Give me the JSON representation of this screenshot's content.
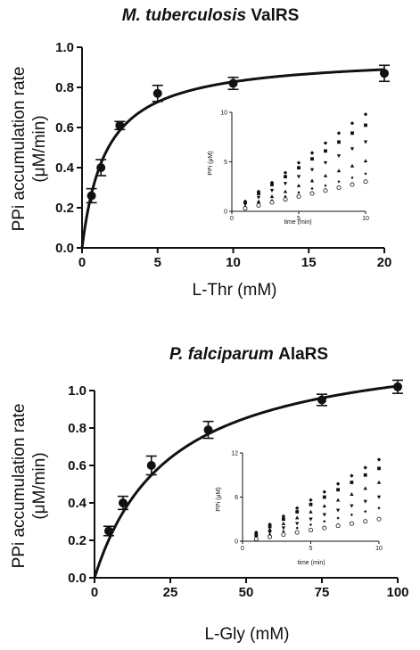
{
  "chart_data": [
    {
      "type": "scatter",
      "title": {
        "species": "M. tuberculosis",
        "enzyme": "ValRS"
      },
      "xlabel": "L-Thr (mM)",
      "ylabel": [
        "PPi accumulation rate",
        "(μM/min)"
      ],
      "xlim": [
        0,
        20
      ],
      "ylim": [
        0,
        1.0
      ],
      "xticks": [
        0,
        5,
        10,
        15,
        20
      ],
      "xtick_labels": [
        "0",
        "5",
        "10",
        "15",
        "20"
      ],
      "yticks": [
        0,
        0.2,
        0.4,
        0.6,
        0.8,
        1.0
      ],
      "ytick_labels": [
        "0.0",
        "0.2",
        "0.4",
        "0.6",
        "0.8",
        "1.0"
      ],
      "points": [
        {
          "x": 0.625,
          "y": 0.26,
          "err": 0.035
        },
        {
          "x": 1.25,
          "y": 0.4,
          "err": 0.04
        },
        {
          "x": 2.5,
          "y": 0.61,
          "err": 0.02
        },
        {
          "x": 5,
          "y": 0.77,
          "err": 0.04
        },
        {
          "x": 10,
          "y": 0.82,
          "err": 0.03
        },
        {
          "x": 20,
          "y": 0.87,
          "err": 0.04
        }
      ],
      "fit": {
        "model": "michaelis-menten",
        "vmax": 0.96,
        "km": 1.6
      },
      "inset": {
        "type": "scatter",
        "xlabel": "time (min)",
        "ylabel": "PPi (μM)",
        "xlim": [
          0,
          10
        ],
        "ylim": [
          0,
          10
        ],
        "xticks": [
          0,
          5,
          10
        ],
        "xtick_labels": [
          "0",
          "5",
          "10"
        ],
        "yticks": [
          0,
          5,
          10
        ],
        "ytick_labels": [
          "0",
          "5",
          "10"
        ],
        "x": [
          1,
          2,
          3,
          4,
          5,
          6,
          7,
          8,
          9,
          10
        ],
        "series": [
          {
            "marker": "diamond",
            "values": [
              1.0,
              2.0,
              2.9,
              3.9,
              4.9,
              5.9,
              6.9,
              7.9,
              8.9,
              9.8
            ]
          },
          {
            "marker": "square",
            "values": [
              0.9,
              1.8,
              2.7,
              3.5,
              4.4,
              5.3,
              6.1,
              7.0,
              7.9,
              8.7
            ]
          },
          {
            "marker": "triangle-down",
            "values": [
              0.7,
              1.4,
              2.1,
              2.8,
              3.5,
              4.2,
              4.9,
              5.6,
              6.3,
              7.0
            ]
          },
          {
            "marker": "triangle-up",
            "values": [
              0.5,
              1.0,
              1.5,
              2.0,
              2.6,
              3.1,
              3.6,
              4.1,
              4.6,
              5.1
            ]
          },
          {
            "marker": "diamond-small",
            "values": [
              0.4,
              0.8,
              1.1,
              1.5,
              1.9,
              2.3,
              2.6,
              3.0,
              3.4,
              3.8
            ]
          },
          {
            "marker": "circle-open",
            "values": [
              0.3,
              0.6,
              0.9,
              1.2,
              1.5,
              1.8,
              2.1,
              2.4,
              2.7,
              3.0
            ]
          }
        ]
      }
    },
    {
      "type": "scatter",
      "title": {
        "species": "P. falciparum",
        "enzyme": "AlaRS"
      },
      "xlabel": "L-Gly (mM)",
      "ylabel": [
        "PPi accumulation rate",
        "(μM/min)"
      ],
      "xlim": [
        0,
        100
      ],
      "ylim": [
        0,
        1.0
      ],
      "xticks": [
        0,
        25,
        50,
        75,
        100
      ],
      "xtick_labels": [
        "0",
        "25",
        "50",
        "75",
        "100"
      ],
      "yticks": [
        0,
        0.2,
        0.4,
        0.6,
        0.8,
        1.0
      ],
      "ytick_labels": [
        "0.0",
        "0.2",
        "0.4",
        "0.6",
        "0.8",
        "1.0"
      ],
      "points": [
        {
          "x": 4.7,
          "y": 0.25,
          "err": 0.025
        },
        {
          "x": 9.4,
          "y": 0.4,
          "err": 0.035
        },
        {
          "x": 18.75,
          "y": 0.6,
          "err": 0.05
        },
        {
          "x": 37.5,
          "y": 0.79,
          "err": 0.045
        },
        {
          "x": 75,
          "y": 0.95,
          "err": 0.03
        },
        {
          "x": 100,
          "y": 1.02,
          "err": 0.035
        }
      ],
      "fit": {
        "model": "michaelis-menten",
        "vmax": 1.28,
        "km": 25
      },
      "inset": {
        "type": "scatter",
        "xlabel": "time (min)",
        "ylabel": "PPi (μM)",
        "xlim": [
          0,
          10
        ],
        "ylim": [
          0,
          12
        ],
        "xticks": [
          0,
          5,
          10
        ],
        "xtick_labels": [
          "0",
          "5",
          "10"
        ],
        "yticks": [
          0,
          6,
          12
        ],
        "ytick_labels": [
          "0",
          "6",
          "12"
        ],
        "x": [
          1,
          2,
          3,
          4,
          5,
          6,
          7,
          8,
          9,
          10
        ],
        "series": [
          {
            "marker": "diamond",
            "values": [
              1.2,
              2.3,
              3.4,
              4.5,
              5.6,
              6.7,
              7.8,
              8.9,
              10.0,
              11.1
            ]
          },
          {
            "marker": "square",
            "values": [
              1.0,
              2.0,
              3.0,
              4.0,
              5.0,
              6.0,
              7.0,
              8.0,
              9.0,
              9.9
            ]
          },
          {
            "marker": "triangle-up",
            "values": [
              0.8,
              1.6,
              2.4,
              3.2,
              4.0,
              4.8,
              5.6,
              6.4,
              7.2,
              8.0
            ]
          },
          {
            "marker": "triangle-down",
            "values": [
              0.6,
              1.2,
              1.8,
              2.4,
              3.0,
              3.6,
              4.2,
              4.8,
              5.4,
              6.0
            ]
          },
          {
            "marker": "diamond-small",
            "values": [
              0.45,
              0.9,
              1.35,
              1.8,
              2.25,
              2.7,
              3.15,
              3.6,
              4.05,
              4.5
            ]
          },
          {
            "marker": "circle-open",
            "values": [
              0.3,
              0.6,
              0.9,
              1.2,
              1.5,
              1.8,
              2.1,
              2.4,
              2.7,
              3.0
            ]
          }
        ]
      }
    }
  ]
}
